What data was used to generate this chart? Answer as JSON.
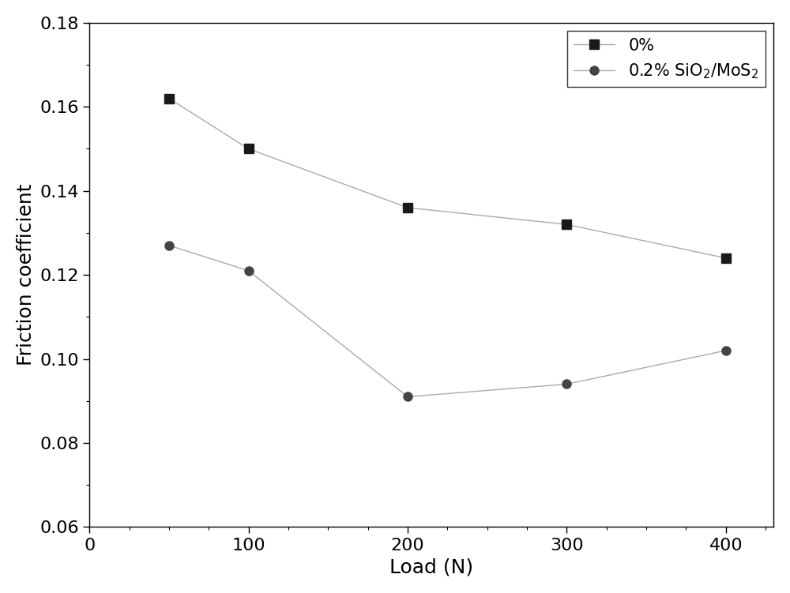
{
  "series1_label": "0%",
  "series1_x": [
    50,
    100,
    200,
    300,
    400
  ],
  "series1_y": [
    0.162,
    0.15,
    0.136,
    0.132,
    0.124
  ],
  "series1_color": "#1a1a1a",
  "series1_marker": "s",
  "series1_markersize": 8,
  "series2_label": "0.2% SiO$_2$/MoS$_2$",
  "series2_x": [
    50,
    100,
    200,
    300,
    400
  ],
  "series2_y": [
    0.127,
    0.121,
    0.091,
    0.094,
    0.102
  ],
  "series2_color": "#444444",
  "series2_marker": "o",
  "series2_markersize": 8,
  "xlabel": "Load (N)",
  "ylabel": "Friction coefficient",
  "xlim": [
    0,
    430
  ],
  "ylim": [
    0.06,
    0.18
  ],
  "xticks": [
    0,
    100,
    200,
    300,
    400
  ],
  "yticks": [
    0.06,
    0.08,
    0.1,
    0.12,
    0.14,
    0.16,
    0.18
  ],
  "linecolor": "#aaaaaa",
  "linewidth": 1.0,
  "legend_loc": "upper right",
  "axis_fontsize": 18,
  "tick_fontsize": 16,
  "legend_fontsize": 15,
  "fig_width": 10.0,
  "fig_height": 7.51
}
